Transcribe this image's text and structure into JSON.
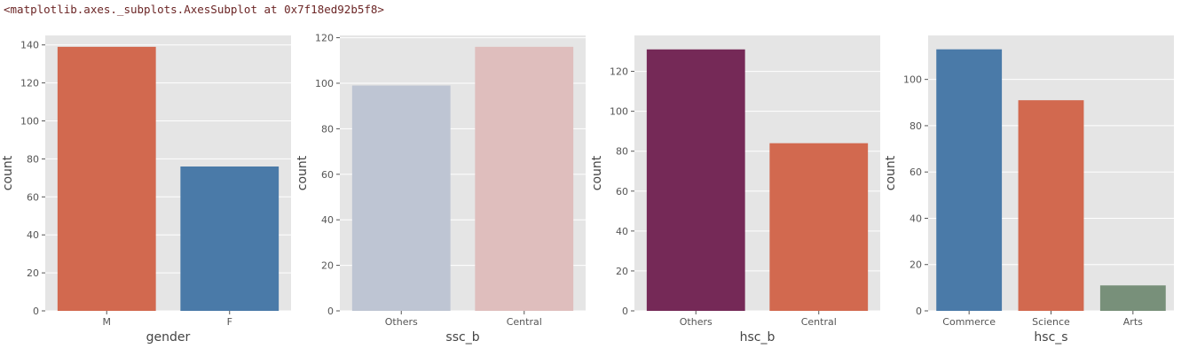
{
  "output_repr": "<matplotlib.axes._subplots.AxesSubplot at 0x7f18ed92b5f8>",
  "style": {
    "axes_background": "#e5e5e5",
    "grid_color": "#ffffff",
    "grid": true
  },
  "chart_data": [
    {
      "type": "bar",
      "xlabel": "gender",
      "ylabel": "count",
      "ylim": [
        0,
        145
      ],
      "yticks": [
        0,
        20,
        40,
        60,
        80,
        100,
        120,
        140
      ],
      "categories": [
        "M",
        "F"
      ],
      "values": [
        139,
        76
      ],
      "colors": [
        "#d2694f",
        "#4a7aa8"
      ]
    },
    {
      "type": "bar",
      "xlabel": "ssc_b",
      "ylabel": "count",
      "ylim": [
        0,
        121
      ],
      "yticks": [
        0,
        20,
        40,
        60,
        80,
        100,
        120
      ],
      "categories": [
        "Others",
        "Central"
      ],
      "values": [
        99,
        116
      ],
      "colors": [
        "#bec5d3",
        "#dfbebd"
      ]
    },
    {
      "type": "bar",
      "xlabel": "hsc_b",
      "ylabel": "count",
      "ylim": [
        0,
        138
      ],
      "yticks": [
        0,
        20,
        40,
        60,
        80,
        100,
        120
      ],
      "categories": [
        "Others",
        "Central"
      ],
      "values": [
        131,
        84
      ],
      "colors": [
        "#752957",
        "#d2694f"
      ]
    },
    {
      "type": "bar",
      "xlabel": "hsc_s",
      "ylabel": "count",
      "ylim": [
        0,
        119
      ],
      "yticks": [
        0,
        20,
        40,
        60,
        80,
        100
      ],
      "categories": [
        "Commerce",
        "Science",
        "Arts"
      ],
      "values": [
        113,
        91,
        11
      ],
      "colors": [
        "#4a7aa8",
        "#d2694f",
        "#78907a"
      ]
    }
  ]
}
